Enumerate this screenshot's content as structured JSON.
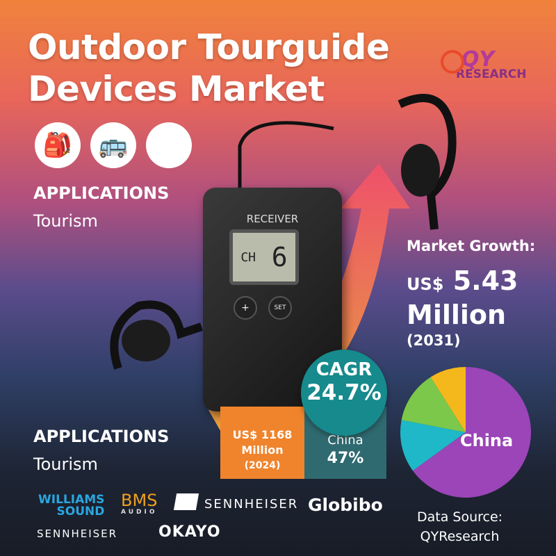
{
  "title": {
    "line1": "Outdoor Tourguide",
    "line2": "Devices Market"
  },
  "logo": {
    "brand": "QY",
    "sub": "RESEARCH"
  },
  "application_icons": [
    "backpack-icon",
    "bus-icon",
    "landmark-icon"
  ],
  "applications_top": {
    "heading": "APPLICATIONS",
    "value": "Tourism"
  },
  "applications_bottom": {
    "heading": "APPLICATIONS",
    "value": "Tourism"
  },
  "device": {
    "label": "RECEIVER",
    "screen_ch": "CH",
    "screen_num": "6",
    "btn_plus": "+",
    "btn_set": "SET"
  },
  "market_growth": {
    "label": "Market Growth:",
    "currency": "US$",
    "value": "5.43",
    "unit": "Million",
    "year": "(2031)"
  },
  "cagr": {
    "label": "CAGR",
    "value": "24.7%"
  },
  "base": {
    "line1": "US$ 1168",
    "line2": "Million",
    "line3": "(2024)"
  },
  "china_share": {
    "label": "China",
    "value": "47%"
  },
  "pie": {
    "label": "China",
    "colors": [
      "#9b45b8",
      "#1eb8c8",
      "#7cc84a",
      "#f5b81c"
    ],
    "shares": [
      65,
      13,
      13,
      9
    ]
  },
  "brands": [
    "WILLIAMS SOUND",
    "BMS AUDIO",
    "SENNHEISER",
    "Globibo",
    "SENNHEISER",
    "OKAYO"
  ],
  "williams": {
    "l1": "WILLIAMS",
    "l2": "SOUND"
  },
  "bms": {
    "l1": "BMS",
    "l2": "AUDIO"
  },
  "source": {
    "l1": "Data Source:",
    "l2": "QYResearch"
  }
}
